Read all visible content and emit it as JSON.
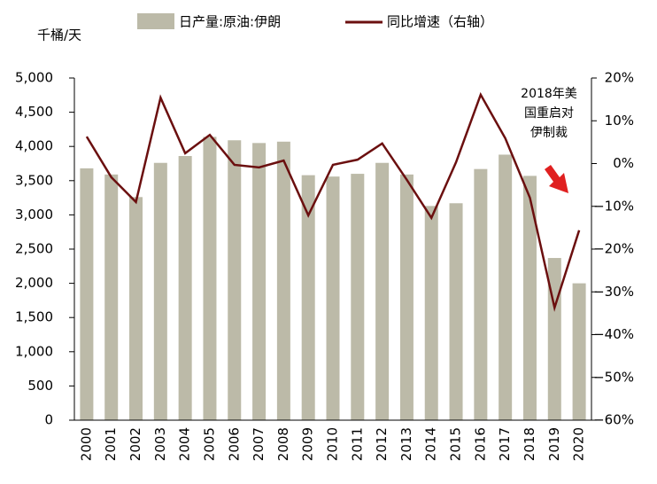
{
  "chart_data": {
    "type": "bar+line",
    "y_label": "千桶/天",
    "categories": [
      "2000",
      "2001",
      "2002",
      "2003",
      "2004",
      "2005",
      "2006",
      "2007",
      "2008",
      "2009",
      "2010",
      "2011",
      "2012",
      "2013",
      "2014",
      "2015",
      "2016",
      "2017",
      "2018",
      "2019",
      "2020"
    ],
    "series": [
      {
        "name": "日产量:原油:伊朗",
        "type": "bar",
        "color": "#bcbaa8",
        "axis": "y",
        "values": [
          3680,
          3590,
          3260,
          3760,
          3860,
          4140,
          4090,
          4050,
          4070,
          3580,
          3560,
          3600,
          3760,
          3590,
          3130,
          3170,
          3670,
          3880,
          3570,
          2370,
          2000
        ]
      },
      {
        "name": "同比增速（右轴）",
        "type": "line",
        "color": "#6b0f0f",
        "axis": "y2",
        "values": [
          6.3,
          -3.2,
          -9.0,
          15.4,
          2.4,
          6.7,
          -0.3,
          -0.9,
          0.7,
          -12.1,
          -0.3,
          0.9,
          4.7,
          -3.8,
          -12.7,
          0.3,
          16.1,
          5.9,
          -8.0,
          -33.7,
          -15.6
        ]
      }
    ],
    "ylim": [
      0,
      5000
    ],
    "yticks": [
      0,
      500,
      {
        "value": 1000,
        "label": "1,000"
      },
      {
        "value": 1500,
        "label": "1,500"
      },
      {
        "value": 2000,
        "label": "2,000"
      },
      {
        "value": 2500,
        "label": "2,500"
      },
      {
        "value": 3000,
        "label": "3,000"
      },
      {
        "value": 3500,
        "label": "3,500"
      },
      {
        "value": 4000,
        "label": "4,000"
      },
      {
        "value": 4500,
        "label": "4,500"
      },
      {
        "value": 5000,
        "label": "5,000"
      }
    ],
    "y2lim": [
      -60,
      20
    ],
    "y2ticks": [
      {
        "value": -60,
        "label": "−60%"
      },
      {
        "value": -50,
        "label": "−50%"
      },
      {
        "value": -40,
        "label": "−40%"
      },
      {
        "value": -30,
        "label": "−30%"
      },
      {
        "value": -20,
        "label": "−20%"
      },
      {
        "value": -10,
        "label": "−10%"
      },
      {
        "value": 0,
        "label": "0%"
      },
      {
        "value": 10,
        "label": "10%"
      },
      {
        "value": 20,
        "label": "20%"
      }
    ],
    "annotation": [
      "2018年美",
      "国重启对",
      "伊制裁"
    ]
  }
}
